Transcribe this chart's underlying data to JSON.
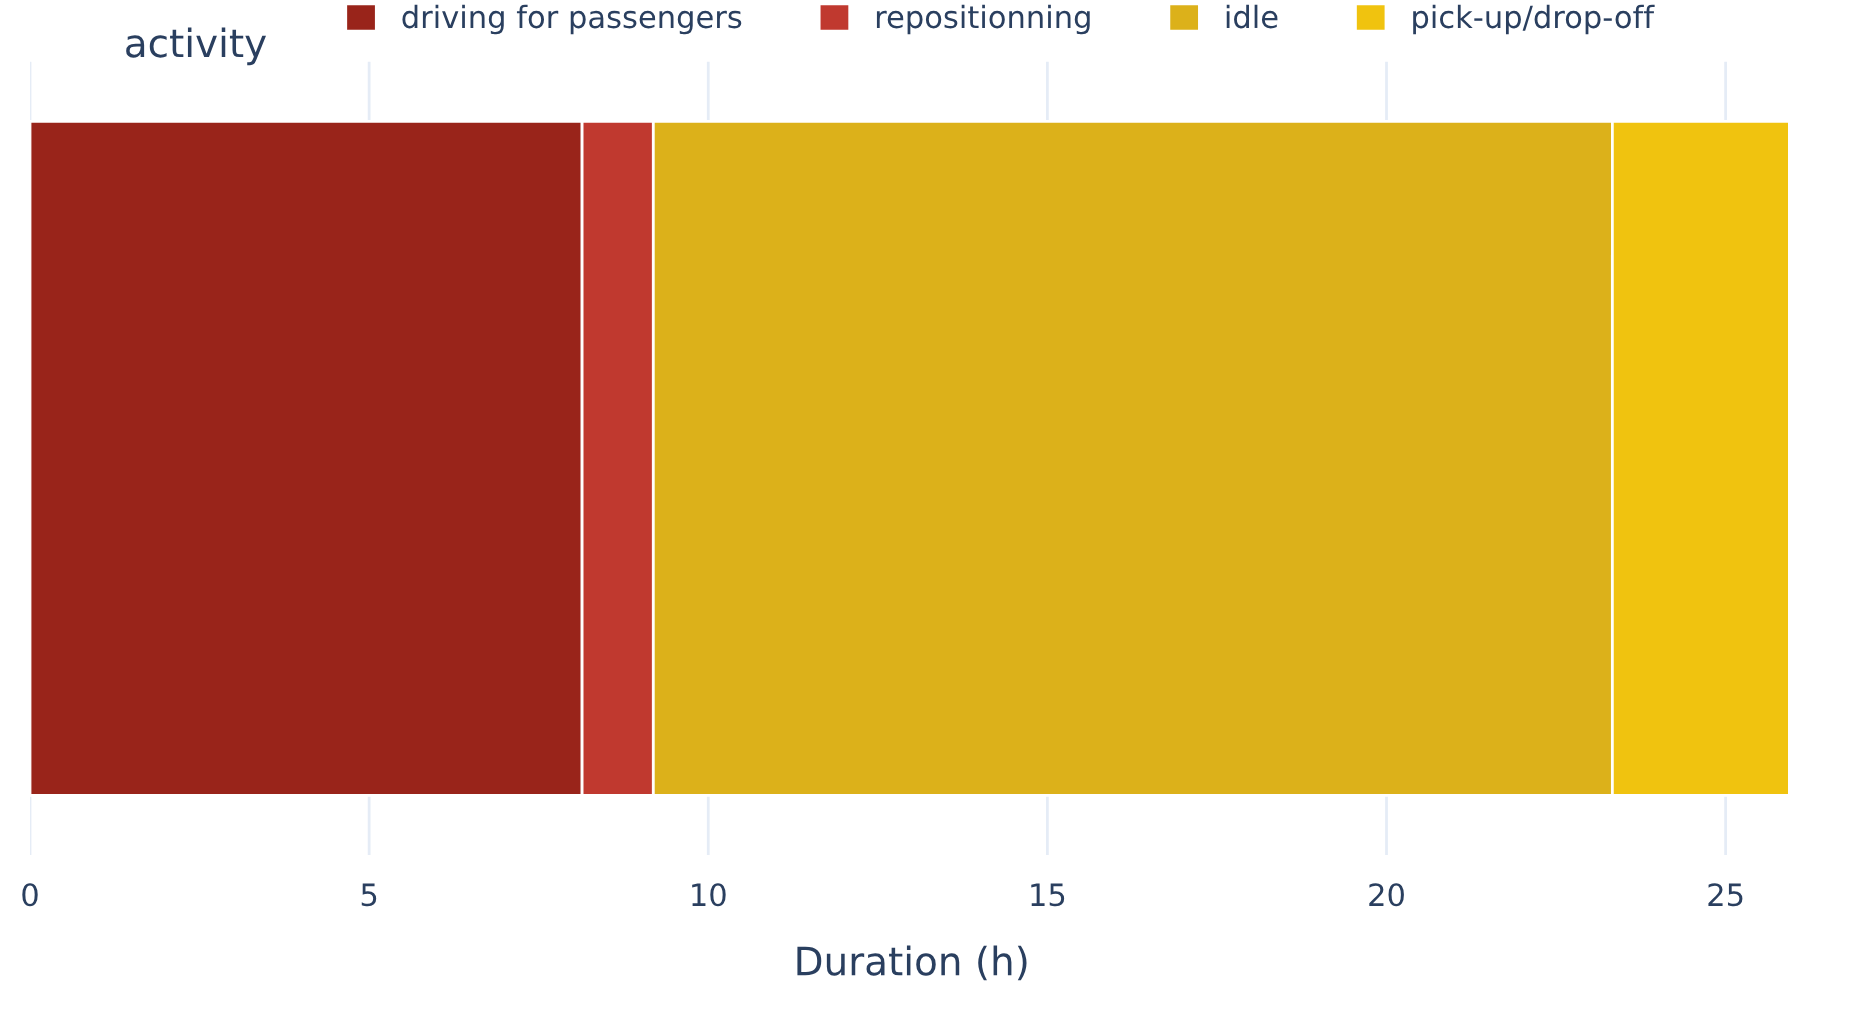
{
  "chart_data": {
    "type": "bar",
    "orientation": "horizontal",
    "stacked": true,
    "xlabel": "Duration (h)",
    "legend_title": "activity",
    "categories": [
      null
    ],
    "series": [
      {
        "name": "driving for passengers",
        "color": "#99241a",
        "values": [
          8.14
        ]
      },
      {
        "name": "repositionning",
        "color": "#c0392f",
        "values": [
          1.05
        ]
      },
      {
        "name": "idle",
        "color": "#dcb11a",
        "values": [
          14.14
        ]
      },
      {
        "name": "pick-up/drop-off",
        "color": "#f0c30f",
        "values": [
          2.61
        ]
      }
    ],
    "xlim": [
      0,
      26
    ],
    "xticks": [
      0,
      5,
      10,
      15,
      20,
      25
    ],
    "grid": "x",
    "legend": "top",
    "tick_labels": "x"
  }
}
